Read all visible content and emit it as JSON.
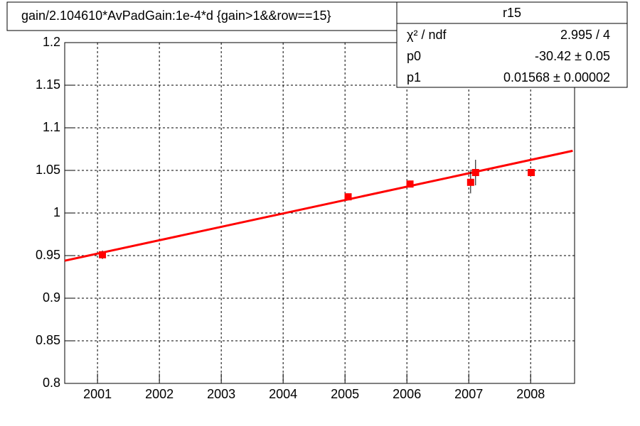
{
  "chart_data": {
    "type": "scatter",
    "title": "gain/2.104610*AvPadGain:1e-4*d  {gain>1&&row==15}",
    "stats": {
      "title": "r15",
      "rows": [
        [
          "χ² / ndf",
          "2.995 / 4"
        ],
        [
          "p0",
          "-30.42 ± 0.05"
        ],
        [
          "p1",
          "0.01568  ± 0.00002"
        ]
      ]
    },
    "xlim": [
      2000.47,
      2008.71
    ],
    "xticks": [
      2001,
      2002,
      2003,
      2004,
      2005,
      2006,
      2007,
      2008
    ],
    "ylim": [
      0.8,
      1.2
    ],
    "yticks": [
      0.8,
      0.85,
      0.9,
      0.95,
      1,
      1.05,
      1.1,
      1.15,
      1.2
    ],
    "grid": true,
    "series": [
      {
        "color": "#ff0000",
        "x": [
          2001.08,
          2005.05,
          2006.05,
          2007.03,
          2007.11,
          2008.01
        ],
        "values": [
          0.951,
          1.019,
          1.034,
          1.036,
          1.0475,
          1.0475
        ],
        "errors": [
          0.005,
          0.004,
          0.004,
          0.013,
          0.015,
          0.002
        ]
      }
    ],
    "fit": {
      "color": "#ff0000",
      "x": [
        2000.47,
        2008.68
      ],
      "values": [
        0.944,
        1.073
      ]
    }
  }
}
